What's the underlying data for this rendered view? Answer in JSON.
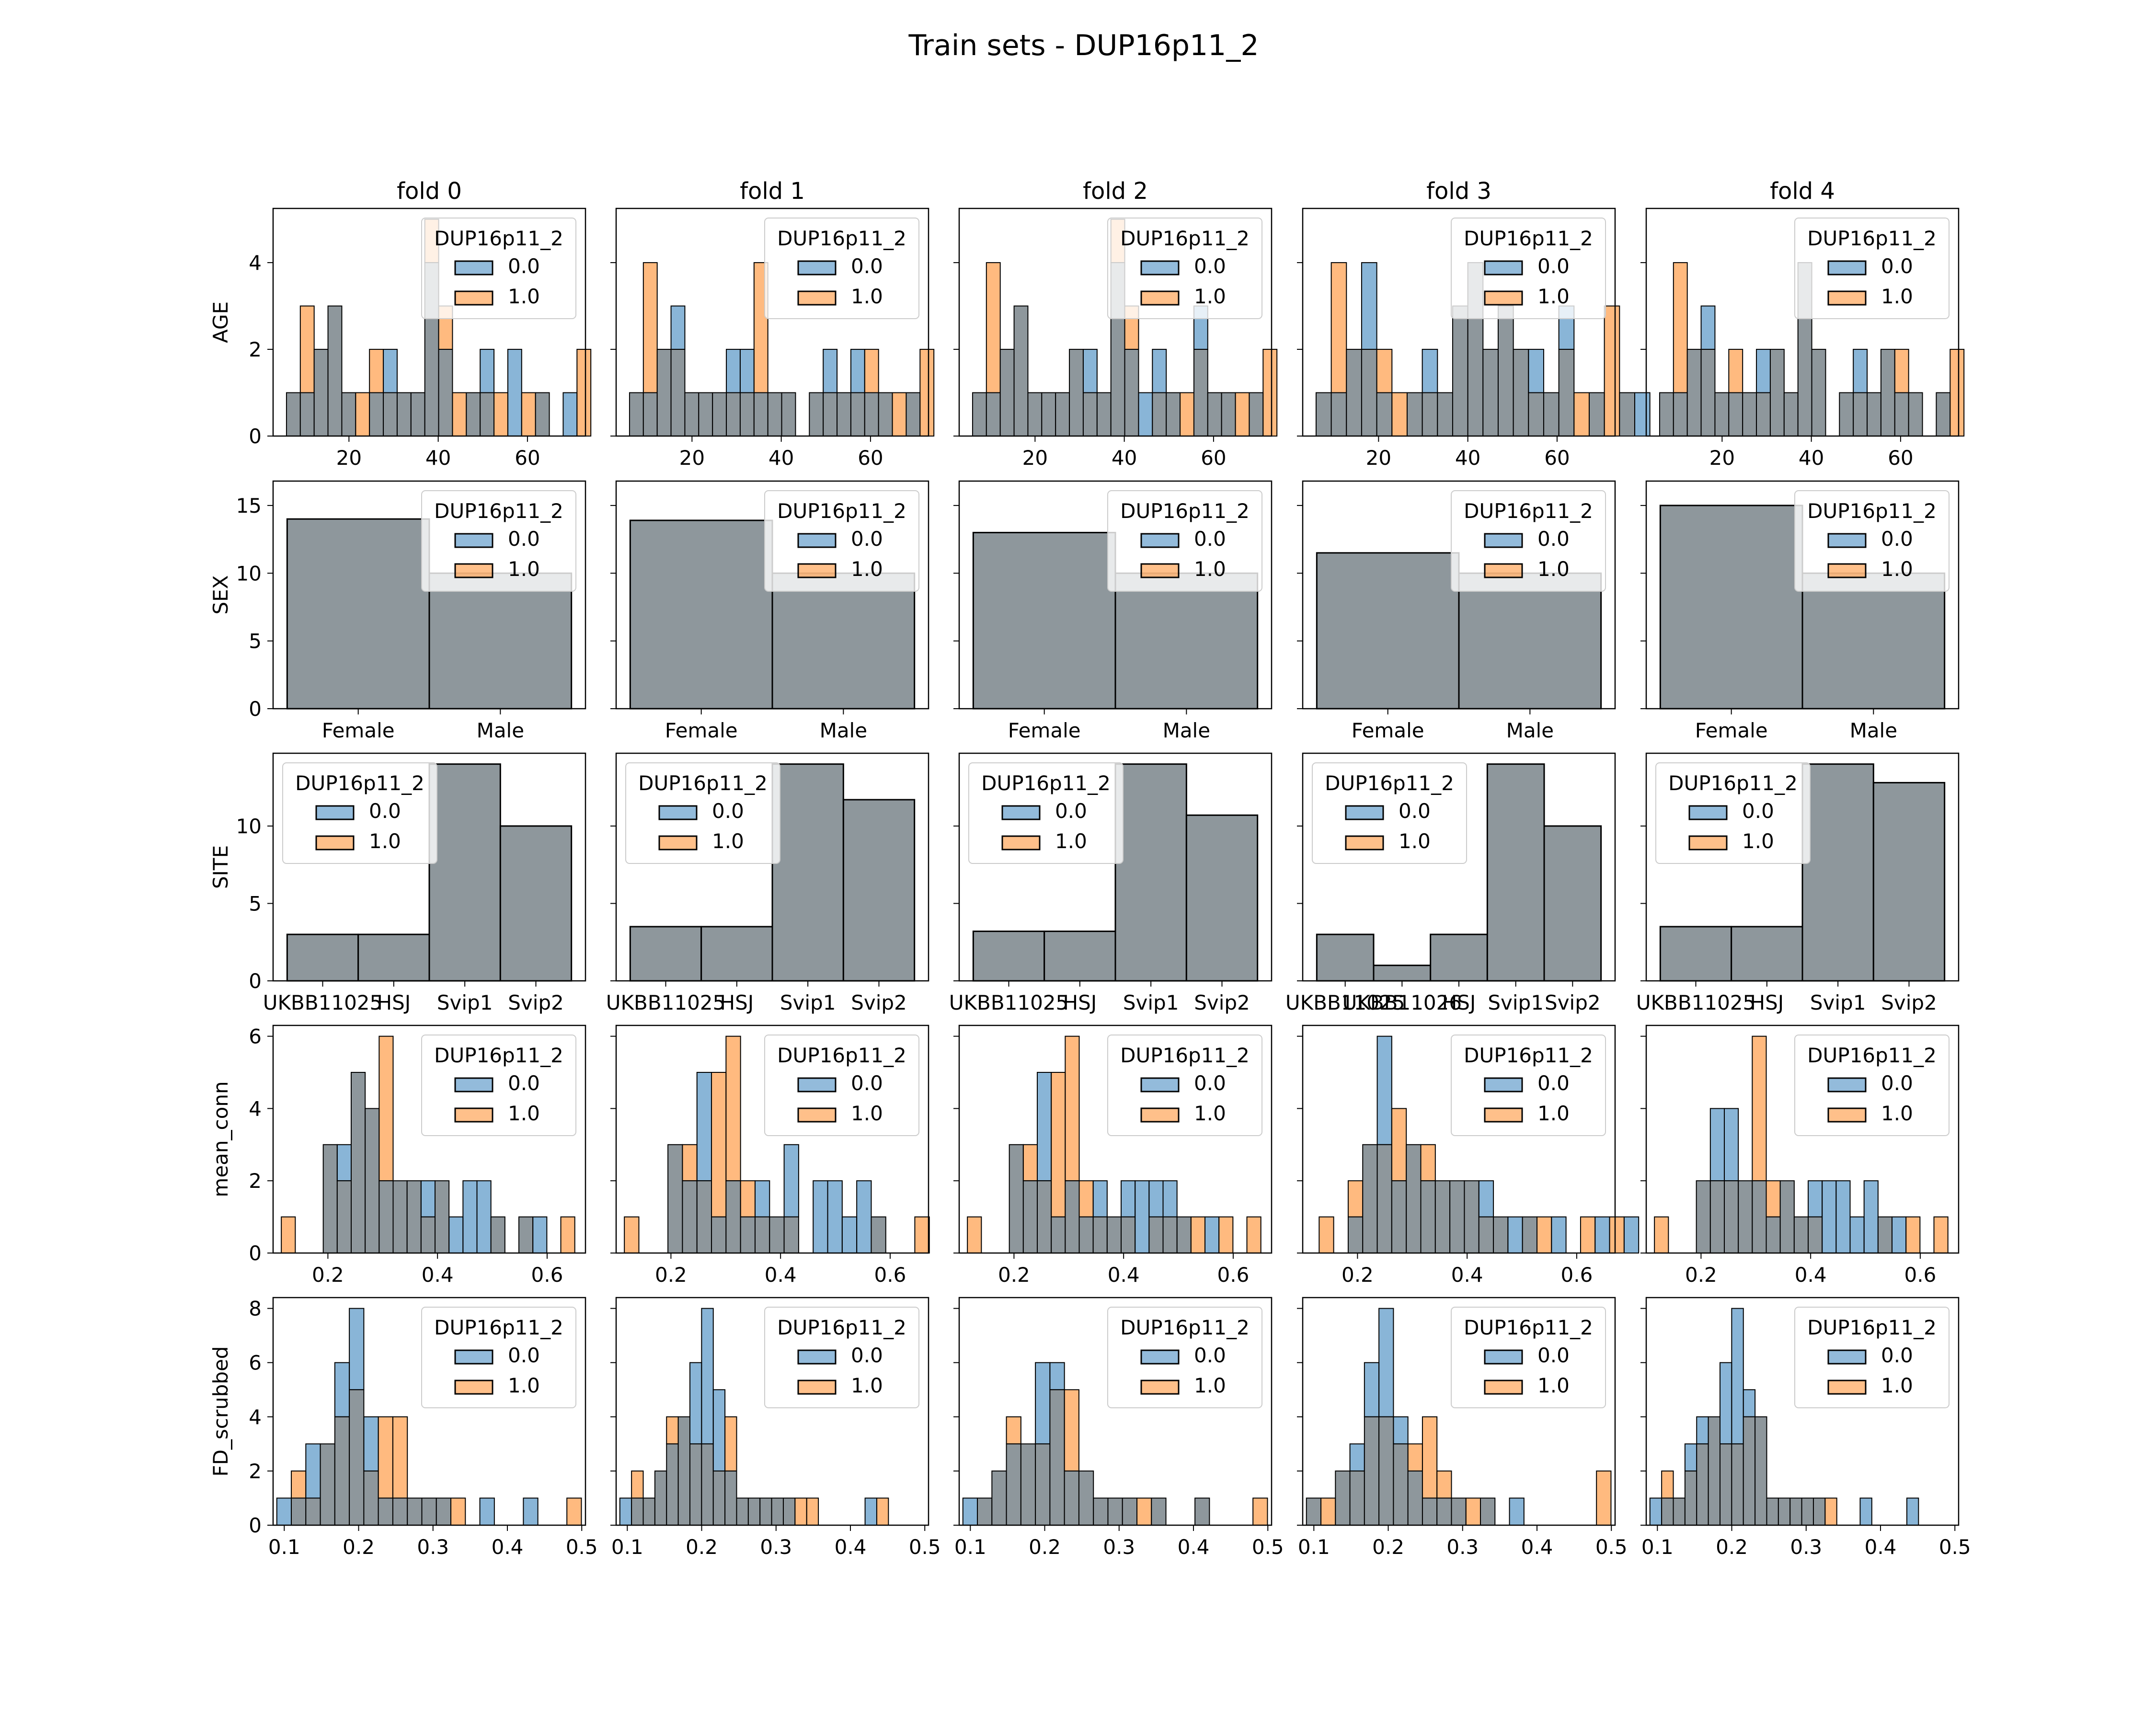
{
  "title": "Train sets - DUP16p11_2",
  "colors": {
    "class_0": "#3b83bd",
    "class_1": "#ff8c29",
    "overlap": "#8e979c",
    "edge": "#000000"
  },
  "legend": {
    "title": "DUP16p11_2",
    "entries": [
      "0.0",
      "1.0"
    ]
  },
  "chart_data": {
    "type": "histogram-grid",
    "columns": [
      "fold 0",
      "fold 1",
      "fold 2",
      "fold 3",
      "fold 4"
    ],
    "rows": [
      {
        "ylabel": "AGE",
        "kind": "numeric",
        "xlim": [
          3,
          73
        ],
        "xticks": [
          20,
          40,
          60
        ],
        "xticklabels": [
          "20",
          "40",
          "60"
        ],
        "ylim": [
          0,
          5.25
        ],
        "yticks": [
          0,
          2,
          4
        ],
        "yticklabels": [
          "0",
          "2",
          "4"
        ],
        "legend_position": "top-right",
        "folds": [
          {
            "bin_start": 6,
            "bin_width": 3.1,
            "class_0": [
              1,
              1,
              2,
              3,
              1,
              0,
              1,
              2,
              1,
              1,
              4,
              2,
              0,
              1,
              2,
              0,
              2,
              0,
              1,
              0,
              1,
              0
            ],
            "class_1": [
              1,
              3,
              2,
              3,
              1,
              1,
              2,
              1,
              1,
              1,
              5,
              3,
              1,
              1,
              1,
              1,
              0,
              1,
              1,
              0,
              0,
              2
            ]
          },
          {
            "bin_start": 6,
            "bin_width": 3.1,
            "class_0": [
              1,
              1,
              2,
              3,
              1,
              1,
              1,
              2,
              2,
              1,
              1,
              1,
              0,
              1,
              2,
              1,
              2,
              1,
              1,
              0,
              1,
              0
            ],
            "class_1": [
              1,
              4,
              2,
              2,
              1,
              1,
              1,
              1,
              1,
              4,
              1,
              1,
              0,
              1,
              1,
              1,
              1,
              2,
              1,
              1,
              1,
              2
            ]
          },
          {
            "bin_start": 6,
            "bin_width": 3.1,
            "class_0": [
              1,
              1,
              2,
              3,
              1,
              1,
              1,
              2,
              2,
              1,
              4,
              2,
              1,
              2,
              1,
              0,
              3,
              1,
              1,
              0,
              1,
              0
            ],
            "class_1": [
              1,
              4,
              2,
              3,
              1,
              1,
              1,
              2,
              1,
              1,
              5,
              3,
              0,
              1,
              1,
              1,
              2,
              1,
              1,
              1,
              1,
              2
            ]
          },
          {
            "bin_start": 6,
            "bin_width": 3.4,
            "class_0": [
              1,
              1,
              2,
              4,
              1,
              0,
              1,
              2,
              1,
              3,
              4,
              2,
              3,
              2,
              2,
              1,
              3,
              0,
              1,
              0,
              1,
              1
            ],
            "class_1": [
              1,
              4,
              2,
              2,
              2,
              1,
              1,
              1,
              1,
              3,
              4,
              2,
              3,
              2,
              1,
              1,
              2,
              1,
              1,
              3,
              1,
              0
            ]
          },
          {
            "bin_start": 6,
            "bin_width": 3.1,
            "class_0": [
              1,
              1,
              2,
              3,
              1,
              1,
              1,
              2,
              2,
              1,
              4,
              2,
              0,
              1,
              2,
              1,
              2,
              1,
              1,
              0,
              1,
              0
            ],
            "class_1": [
              1,
              4,
              2,
              2,
              1,
              2,
              1,
              1,
              2,
              1,
              4,
              2,
              0,
              1,
              1,
              1,
              2,
              2,
              1,
              0,
              1,
              2
            ]
          }
        ]
      },
      {
        "ylabel": "SEX",
        "kind": "categorical",
        "categories": [
          "Female",
          "Male"
        ],
        "ylim": [
          0,
          16.8
        ],
        "yticks": [
          0,
          5,
          10,
          15
        ],
        "yticklabels": [
          "0",
          "5",
          "10",
          "15"
        ],
        "legend_position": "top-right",
        "folds": [
          {
            "categories": [
              "Female",
              "Male"
            ],
            "values": [
              14,
              10
            ]
          },
          {
            "categories": [
              "Female",
              "Male"
            ],
            "values": [
              13.9,
              10
            ]
          },
          {
            "categories": [
              "Female",
              "Male"
            ],
            "values": [
              13,
              10
            ]
          },
          {
            "categories": [
              "Female",
              "Male"
            ],
            "values": [
              11.5,
              10
            ]
          },
          {
            "categories": [
              "Female",
              "Male"
            ],
            "values": [
              15,
              10
            ]
          }
        ]
      },
      {
        "ylabel": "SITE",
        "kind": "categorical",
        "ylim": [
          0,
          14.7
        ],
        "yticks": [
          0,
          5,
          10
        ],
        "yticklabels": [
          "0",
          "5",
          "10"
        ],
        "legend_position": "top-left",
        "folds": [
          {
            "categories": [
              "UKBB11025",
              "HSJ",
              "Svip1",
              "Svip2"
            ],
            "values": [
              3,
              3,
              14,
              10
            ]
          },
          {
            "categories": [
              "UKBB11025",
              "HSJ",
              "Svip1",
              "Svip2"
            ],
            "values": [
              3.5,
              3.5,
              14,
              11.7
            ]
          },
          {
            "categories": [
              "UKBB11025",
              "HSJ",
              "Svip1",
              "Svip2"
            ],
            "values": [
              3.2,
              3.2,
              14,
              10.7
            ]
          },
          {
            "categories": [
              "UKBB11025",
              "UKBB11026",
              "HSJ",
              "Svip1",
              "Svip2"
            ],
            "values": [
              3,
              1,
              3,
              14,
              10
            ]
          },
          {
            "categories": [
              "UKBB11025",
              "HSJ",
              "Svip1",
              "Svip2"
            ],
            "values": [
              3.5,
              3.5,
              14,
              12.8
            ]
          }
        ]
      },
      {
        "ylabel": "mean_conn",
        "kind": "numeric",
        "xlim": [
          0.1,
          0.67
        ],
        "xticks": [
          0.2,
          0.4,
          0.6
        ],
        "xticklabels": [
          "0.2",
          "0.4",
          "0.6"
        ],
        "ylim": [
          0,
          6.3
        ],
        "yticks": [
          0,
          2,
          4,
          6
        ],
        "yticklabels": [
          "0",
          "2",
          "4",
          "6"
        ],
        "legend_position": "top-right",
        "folds": [
          {
            "bin_start": 0.115,
            "bin_width": 0.0255,
            "class_0": [
              0,
              0,
              0,
              3,
              3,
              5,
              4,
              2,
              2,
              2,
              2,
              2,
              1,
              2,
              2,
              1,
              0,
              1,
              1,
              0,
              0
            ],
            "class_1": [
              1,
              0,
              0,
              3,
              2,
              5,
              4,
              6,
              2,
              2,
              1,
              2,
              0,
              0,
              0,
              1,
              0,
              1,
              0,
              0,
              1
            ]
          },
          {
            "bin_start": 0.115,
            "bin_width": 0.0265,
            "class_0": [
              0,
              0,
              0,
              3,
              2,
              5,
              1,
              2,
              1,
              2,
              1,
              3,
              0,
              2,
              2,
              1,
              2,
              1,
              0,
              0,
              0
            ],
            "class_1": [
              1,
              0,
              0,
              3,
              3,
              2,
              5,
              6,
              2,
              1,
              1,
              1,
              0,
              0,
              0,
              0,
              0,
              1,
              0,
              0,
              1
            ]
          },
          {
            "bin_start": 0.115,
            "bin_width": 0.0255,
            "class_0": [
              0,
              0,
              0,
              3,
              2,
              5,
              1,
              2,
              1,
              2,
              1,
              2,
              2,
              2,
              2,
              1,
              0,
              1,
              0,
              0,
              0
            ],
            "class_1": [
              1,
              0,
              0,
              3,
              3,
              2,
              5,
              6,
              2,
              1,
              1,
              1,
              0,
              1,
              1,
              1,
              1,
              0,
              1,
              0,
              1
            ]
          },
          {
            "bin_start": 0.13,
            "bin_width": 0.0265,
            "class_0": [
              0,
              0,
              1,
              3,
              6,
              2,
              3,
              2,
              2,
              2,
              2,
              2,
              1,
              1,
              1,
              0,
              1,
              0,
              0,
              1,
              0,
              1
            ],
            "class_1": [
              1,
              0,
              2,
              3,
              3,
              4,
              3,
              3,
              2,
              2,
              2,
              1,
              1,
              0,
              1,
              1,
              0,
              0,
              1,
              0,
              1,
              0
            ]
          },
          {
            "bin_start": 0.115,
            "bin_width": 0.0255,
            "class_0": [
              0,
              0,
              0,
              2,
              4,
              4,
              2,
              2,
              1,
              2,
              1,
              2,
              2,
              2,
              1,
              2,
              1,
              1,
              0,
              0,
              0
            ],
            "class_1": [
              1,
              0,
              0,
              2,
              2,
              2,
              2,
              6,
              2,
              2,
              1,
              1,
              0,
              0,
              0,
              0,
              1,
              0,
              1,
              0,
              1
            ]
          }
        ]
      },
      {
        "ylabel": "FD_scrubbed",
        "kind": "numeric",
        "xlim": [
          0.085,
          0.505
        ],
        "xticks": [
          0.1,
          0.2,
          0.3,
          0.4,
          0.5
        ],
        "xticklabels": [
          "0.1",
          "0.2",
          "0.3",
          "0.4",
          "0.5"
        ],
        "ylim": [
          0,
          8.4
        ],
        "yticks": [
          0,
          2,
          4,
          6,
          8
        ],
        "yticklabels": [
          "0",
          "2",
          "4",
          "6",
          "8"
        ],
        "legend_position": "top-right",
        "folds": [
          {
            "bin_start": 0.09,
            "bin_width": 0.0195,
            "class_0": [
              1,
              1,
              3,
              3,
              6,
              8,
              4,
              1,
              1,
              1,
              1,
              1,
              0,
              0,
              1,
              0,
              0,
              1,
              0,
              0,
              0
            ],
            "class_1": [
              0,
              2,
              1,
              3,
              4,
              5,
              2,
              4,
              4,
              1,
              1,
              1,
              1,
              0,
              0,
              0,
              0,
              0,
              0,
              0,
              1
            ]
          },
          {
            "bin_start": 0.09,
            "bin_width": 0.0157,
            "class_0": [
              1,
              1,
              1,
              2,
              3,
              4,
              6,
              8,
              5,
              2,
              1,
              1,
              1,
              1,
              1,
              0,
              0,
              0,
              0,
              0,
              0,
              1,
              0
            ],
            "class_1": [
              0,
              2,
              1,
              2,
              4,
              4,
              3,
              3,
              2,
              4,
              1,
              1,
              1,
              1,
              1,
              1,
              1,
              0,
              0,
              0,
              0,
              0,
              1
            ]
          },
          {
            "bin_start": 0.09,
            "bin_width": 0.0195,
            "class_0": [
              1,
              1,
              2,
              3,
              3,
              6,
              6,
              2,
              2,
              1,
              1,
              1,
              0,
              1,
              0,
              0,
              1,
              0,
              0,
              0,
              0
            ],
            "class_1": [
              0,
              1,
              2,
              4,
              3,
              3,
              5,
              5,
              2,
              1,
              1,
              1,
              1,
              1,
              0,
              0,
              1,
              0,
              0,
              0,
              1
            ]
          },
          {
            "bin_start": 0.09,
            "bin_width": 0.0195,
            "class_0": [
              1,
              0,
              2,
              3,
              6,
              8,
              4,
              2,
              1,
              1,
              1,
              0,
              1,
              0,
              1,
              0,
              0,
              0,
              0,
              0,
              0
            ],
            "class_1": [
              1,
              1,
              2,
              2,
              4,
              4,
              3,
              3,
              4,
              2,
              1,
              1,
              1,
              0,
              0,
              0,
              0,
              0,
              0,
              0,
              2
            ]
          },
          {
            "bin_start": 0.09,
            "bin_width": 0.0157,
            "class_0": [
              1,
              1,
              1,
              3,
              4,
              4,
              6,
              8,
              5,
              4,
              1,
              1,
              1,
              1,
              1,
              0,
              0,
              0,
              1,
              0,
              0,
              0,
              1
            ],
            "class_1": [
              0,
              2,
              1,
              2,
              3,
              4,
              3,
              3,
              4,
              4,
              1,
              1,
              1,
              1,
              1,
              1,
              0,
              0,
              0,
              0,
              0,
              0,
              0
            ]
          }
        ]
      }
    ]
  }
}
